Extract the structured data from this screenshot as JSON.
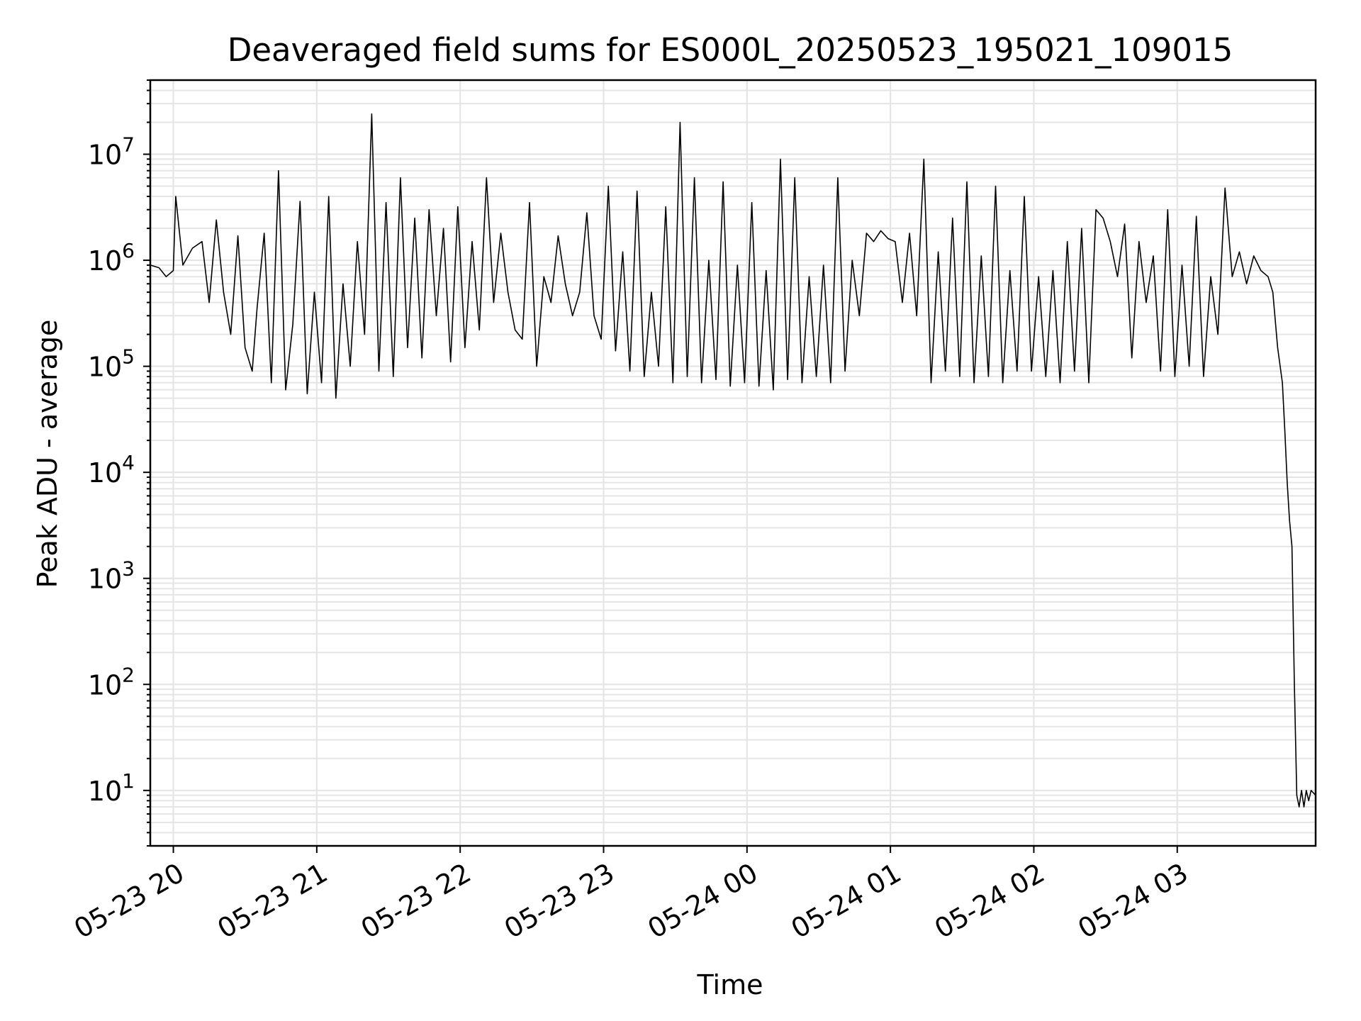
{
  "chart_data": {
    "type": "line",
    "title": "Deaveraged field sums for ES000L_20250523_195021_109015",
    "xlabel": "Time",
    "ylabel": "Peak ADU - average",
    "yscale": "log",
    "ylim": [
      3,
      50000000
    ],
    "xlim": [
      "2025-05-23 19:50:21",
      "2025-05-24 03:57:54"
    ],
    "grid": true,
    "colors": {
      "line": "#000000",
      "grid": "#e5e5e5",
      "axes": "#000000"
    },
    "x_ticks": [
      {
        "at": "2025-05-23 20:00",
        "label": "05-23 20"
      },
      {
        "at": "2025-05-23 21:00",
        "label": "05-23 21"
      },
      {
        "at": "2025-05-23 22:00",
        "label": "05-23 22"
      },
      {
        "at": "2025-05-23 23:00",
        "label": "05-23 23"
      },
      {
        "at": "2025-05-24 00:00",
        "label": "05-24 00"
      },
      {
        "at": "2025-05-24 01:00",
        "label": "05-24 01"
      },
      {
        "at": "2025-05-24 02:00",
        "label": "05-24 02"
      },
      {
        "at": "2025-05-24 03:00",
        "label": "05-24 03"
      }
    ],
    "y_ticks": [
      {
        "value": 10,
        "base": "10",
        "exp": "1"
      },
      {
        "value": 100,
        "base": "10",
        "exp": "2"
      },
      {
        "value": 1000,
        "base": "10",
        "exp": "3"
      },
      {
        "value": 10000,
        "base": "10",
        "exp": "4"
      },
      {
        "value": 100000,
        "base": "10",
        "exp": "5"
      },
      {
        "value": 1000000,
        "base": "10",
        "exp": "6"
      },
      {
        "value": 10000000,
        "base": "10",
        "exp": "7"
      }
    ],
    "series": [
      {
        "x": [
          "2025-05-23 19:50:21",
          "2025-05-23 19:54",
          "2025-05-23 19:57",
          "2025-05-23 20:00",
          "2025-05-23 20:01",
          "2025-05-23 20:04",
          "2025-05-23 20:08",
          "2025-05-23 20:12",
          "2025-05-23 20:15",
          "2025-05-23 20:18",
          "2025-05-23 20:21",
          "2025-05-23 20:24",
          "2025-05-23 20:27",
          "2025-05-23 20:30",
          "2025-05-23 20:33",
          "2025-05-23 20:35",
          "2025-05-23 20:38",
          "2025-05-23 20:41",
          "2025-05-23 20:44",
          "2025-05-23 20:47",
          "2025-05-23 20:50",
          "2025-05-23 20:53",
          "2025-05-23 20:56",
          "2025-05-23 20:59",
          "2025-05-23 21:02",
          "2025-05-23 21:05",
          "2025-05-23 21:08",
          "2025-05-23 21:11",
          "2025-05-23 21:14",
          "2025-05-23 21:17",
          "2025-05-23 21:20",
          "2025-05-23 21:23",
          "2025-05-23 21:26",
          "2025-05-23 21:29",
          "2025-05-23 21:32",
          "2025-05-23 21:35",
          "2025-05-23 21:38",
          "2025-05-23 21:41",
          "2025-05-23 21:44",
          "2025-05-23 21:47",
          "2025-05-23 21:50",
          "2025-05-23 21:53",
          "2025-05-23 21:56",
          "2025-05-23 21:59",
          "2025-05-23 22:02",
          "2025-05-23 22:05",
          "2025-05-23 22:08",
          "2025-05-23 22:11",
          "2025-05-23 22:14",
          "2025-05-23 22:17",
          "2025-05-23 22:20",
          "2025-05-23 22:23",
          "2025-05-23 22:26",
          "2025-05-23 22:29",
          "2025-05-23 22:32",
          "2025-05-23 22:35",
          "2025-05-23 22:38",
          "2025-05-23 22:41",
          "2025-05-23 22:44",
          "2025-05-23 22:47",
          "2025-05-23 22:50",
          "2025-05-23 22:53",
          "2025-05-23 22:56",
          "2025-05-23 22:59",
          "2025-05-23 23:02",
          "2025-05-23 23:05",
          "2025-05-23 23:08",
          "2025-05-23 23:11",
          "2025-05-23 23:14",
          "2025-05-23 23:17",
          "2025-05-23 23:20",
          "2025-05-23 23:23",
          "2025-05-23 23:26",
          "2025-05-23 23:29",
          "2025-05-23 23:32",
          "2025-05-23 23:35",
          "2025-05-23 23:38",
          "2025-05-23 23:41",
          "2025-05-23 23:44",
          "2025-05-23 23:47",
          "2025-05-23 23:50",
          "2025-05-23 23:53",
          "2025-05-23 23:56",
          "2025-05-23 23:59",
          "2025-05-24 00:02",
          "2025-05-24 00:05",
          "2025-05-24 00:08",
          "2025-05-24 00:11",
          "2025-05-24 00:14",
          "2025-05-24 00:17",
          "2025-05-24 00:20",
          "2025-05-24 00:23",
          "2025-05-24 00:26",
          "2025-05-24 00:29",
          "2025-05-24 00:32",
          "2025-05-24 00:35",
          "2025-05-24 00:38",
          "2025-05-24 00:41",
          "2025-05-24 00:44",
          "2025-05-24 00:47",
          "2025-05-24 00:50",
          "2025-05-24 00:53",
          "2025-05-24 00:56",
          "2025-05-24 00:59",
          "2025-05-24 01:02",
          "2025-05-24 01:05",
          "2025-05-24 01:08",
          "2025-05-24 01:11",
          "2025-05-24 01:14",
          "2025-05-24 01:17",
          "2025-05-24 01:20",
          "2025-05-24 01:23",
          "2025-05-24 01:26",
          "2025-05-24 01:29",
          "2025-05-24 01:32",
          "2025-05-24 01:35",
          "2025-05-24 01:38",
          "2025-05-24 01:41",
          "2025-05-24 01:44",
          "2025-05-24 01:47",
          "2025-05-24 01:50",
          "2025-05-24 01:53",
          "2025-05-24 01:56",
          "2025-05-24 01:59",
          "2025-05-24 02:02",
          "2025-05-24 02:05",
          "2025-05-24 02:08",
          "2025-05-24 02:11",
          "2025-05-24 02:14",
          "2025-05-24 02:17",
          "2025-05-24 02:20",
          "2025-05-24 02:23",
          "2025-05-24 02:26",
          "2025-05-24 02:29",
          "2025-05-24 02:32",
          "2025-05-24 02:35",
          "2025-05-24 02:38",
          "2025-05-24 02:41",
          "2025-05-24 02:44",
          "2025-05-24 02:47",
          "2025-05-24 02:50",
          "2025-05-24 02:53",
          "2025-05-24 02:56",
          "2025-05-24 02:59",
          "2025-05-24 03:02",
          "2025-05-24 03:05",
          "2025-05-24 03:08",
          "2025-05-24 03:11",
          "2025-05-24 03:14",
          "2025-05-24 03:17",
          "2025-05-24 03:20",
          "2025-05-24 03:23",
          "2025-05-24 03:26",
          "2025-05-24 03:29",
          "2025-05-24 03:32",
          "2025-05-24 03:35",
          "2025-05-24 03:38",
          "2025-05-24 03:40",
          "2025-05-24 03:42",
          "2025-05-24 03:44",
          "2025-05-24 03:45",
          "2025-05-24 03:46",
          "2025-05-24 03:47",
          "2025-05-24 03:48",
          "2025-05-24 03:49",
          "2025-05-24 03:50",
          "2025-05-24 03:51",
          "2025-05-24 03:52",
          "2025-05-24 03:53",
          "2025-05-24 03:54",
          "2025-05-24 03:55",
          "2025-05-24 03:56",
          "2025-05-24 03:57:54"
        ],
        "y": [
          900000,
          850000,
          700000,
          800000,
          4000000,
          900000,
          1300000,
          1500000,
          400000,
          2400000,
          500000,
          200000,
          1700000,
          150000,
          90000,
          350000,
          1800000,
          70000,
          7000000,
          60000,
          250000,
          3600000,
          55000,
          500000,
          70000,
          4000000,
          50000,
          600000,
          100000,
          1500000,
          200000,
          24000000,
          90000,
          3500000,
          80000,
          6000000,
          150000,
          2500000,
          120000,
          3000000,
          300000,
          2000000,
          110000,
          3200000,
          150000,
          1500000,
          220000,
          6000000,
          400000,
          1800000,
          500000,
          220000,
          180000,
          3500000,
          100000,
          700000,
          400000,
          1700000,
          600000,
          300000,
          500000,
          2800000,
          300000,
          180000,
          5000000,
          140000,
          1200000,
          90000,
          4500000,
          80000,
          500000,
          100000,
          3200000,
          70000,
          20000000,
          80000,
          6000000,
          70000,
          1000000,
          75000,
          5500000,
          65000,
          900000,
          70000,
          3500000,
          65000,
          800000,
          60000,
          9000000,
          75000,
          6000000,
          70000,
          700000,
          80000,
          900000,
          70000,
          6000000,
          90000,
          1000000,
          300000,
          1800000,
          1500000,
          1900000,
          1600000,
          1500000,
          400000,
          1800000,
          300000,
          9000000,
          70000,
          1200000,
          90000,
          2500000,
          80000,
          5500000,
          70000,
          1100000,
          80000,
          5000000,
          70000,
          800000,
          90000,
          4000000,
          90000,
          700000,
          80000,
          800000,
          70000,
          1500000,
          90000,
          2000000,
          70000,
          3000000,
          2500000,
          1500000,
          700000,
          2200000,
          120000,
          1500000,
          400000,
          1100000,
          90000,
          3000000,
          80000,
          900000,
          100000,
          2600000,
          80000,
          700000,
          200000,
          4800000,
          700000,
          1200000,
          600000,
          1100000,
          800000,
          700000,
          500000,
          150000,
          70000,
          25000,
          8000,
          3500,
          2000,
          100,
          9,
          7,
          10,
          7,
          10,
          8,
          10,
          9
        ]
      }
    ]
  }
}
